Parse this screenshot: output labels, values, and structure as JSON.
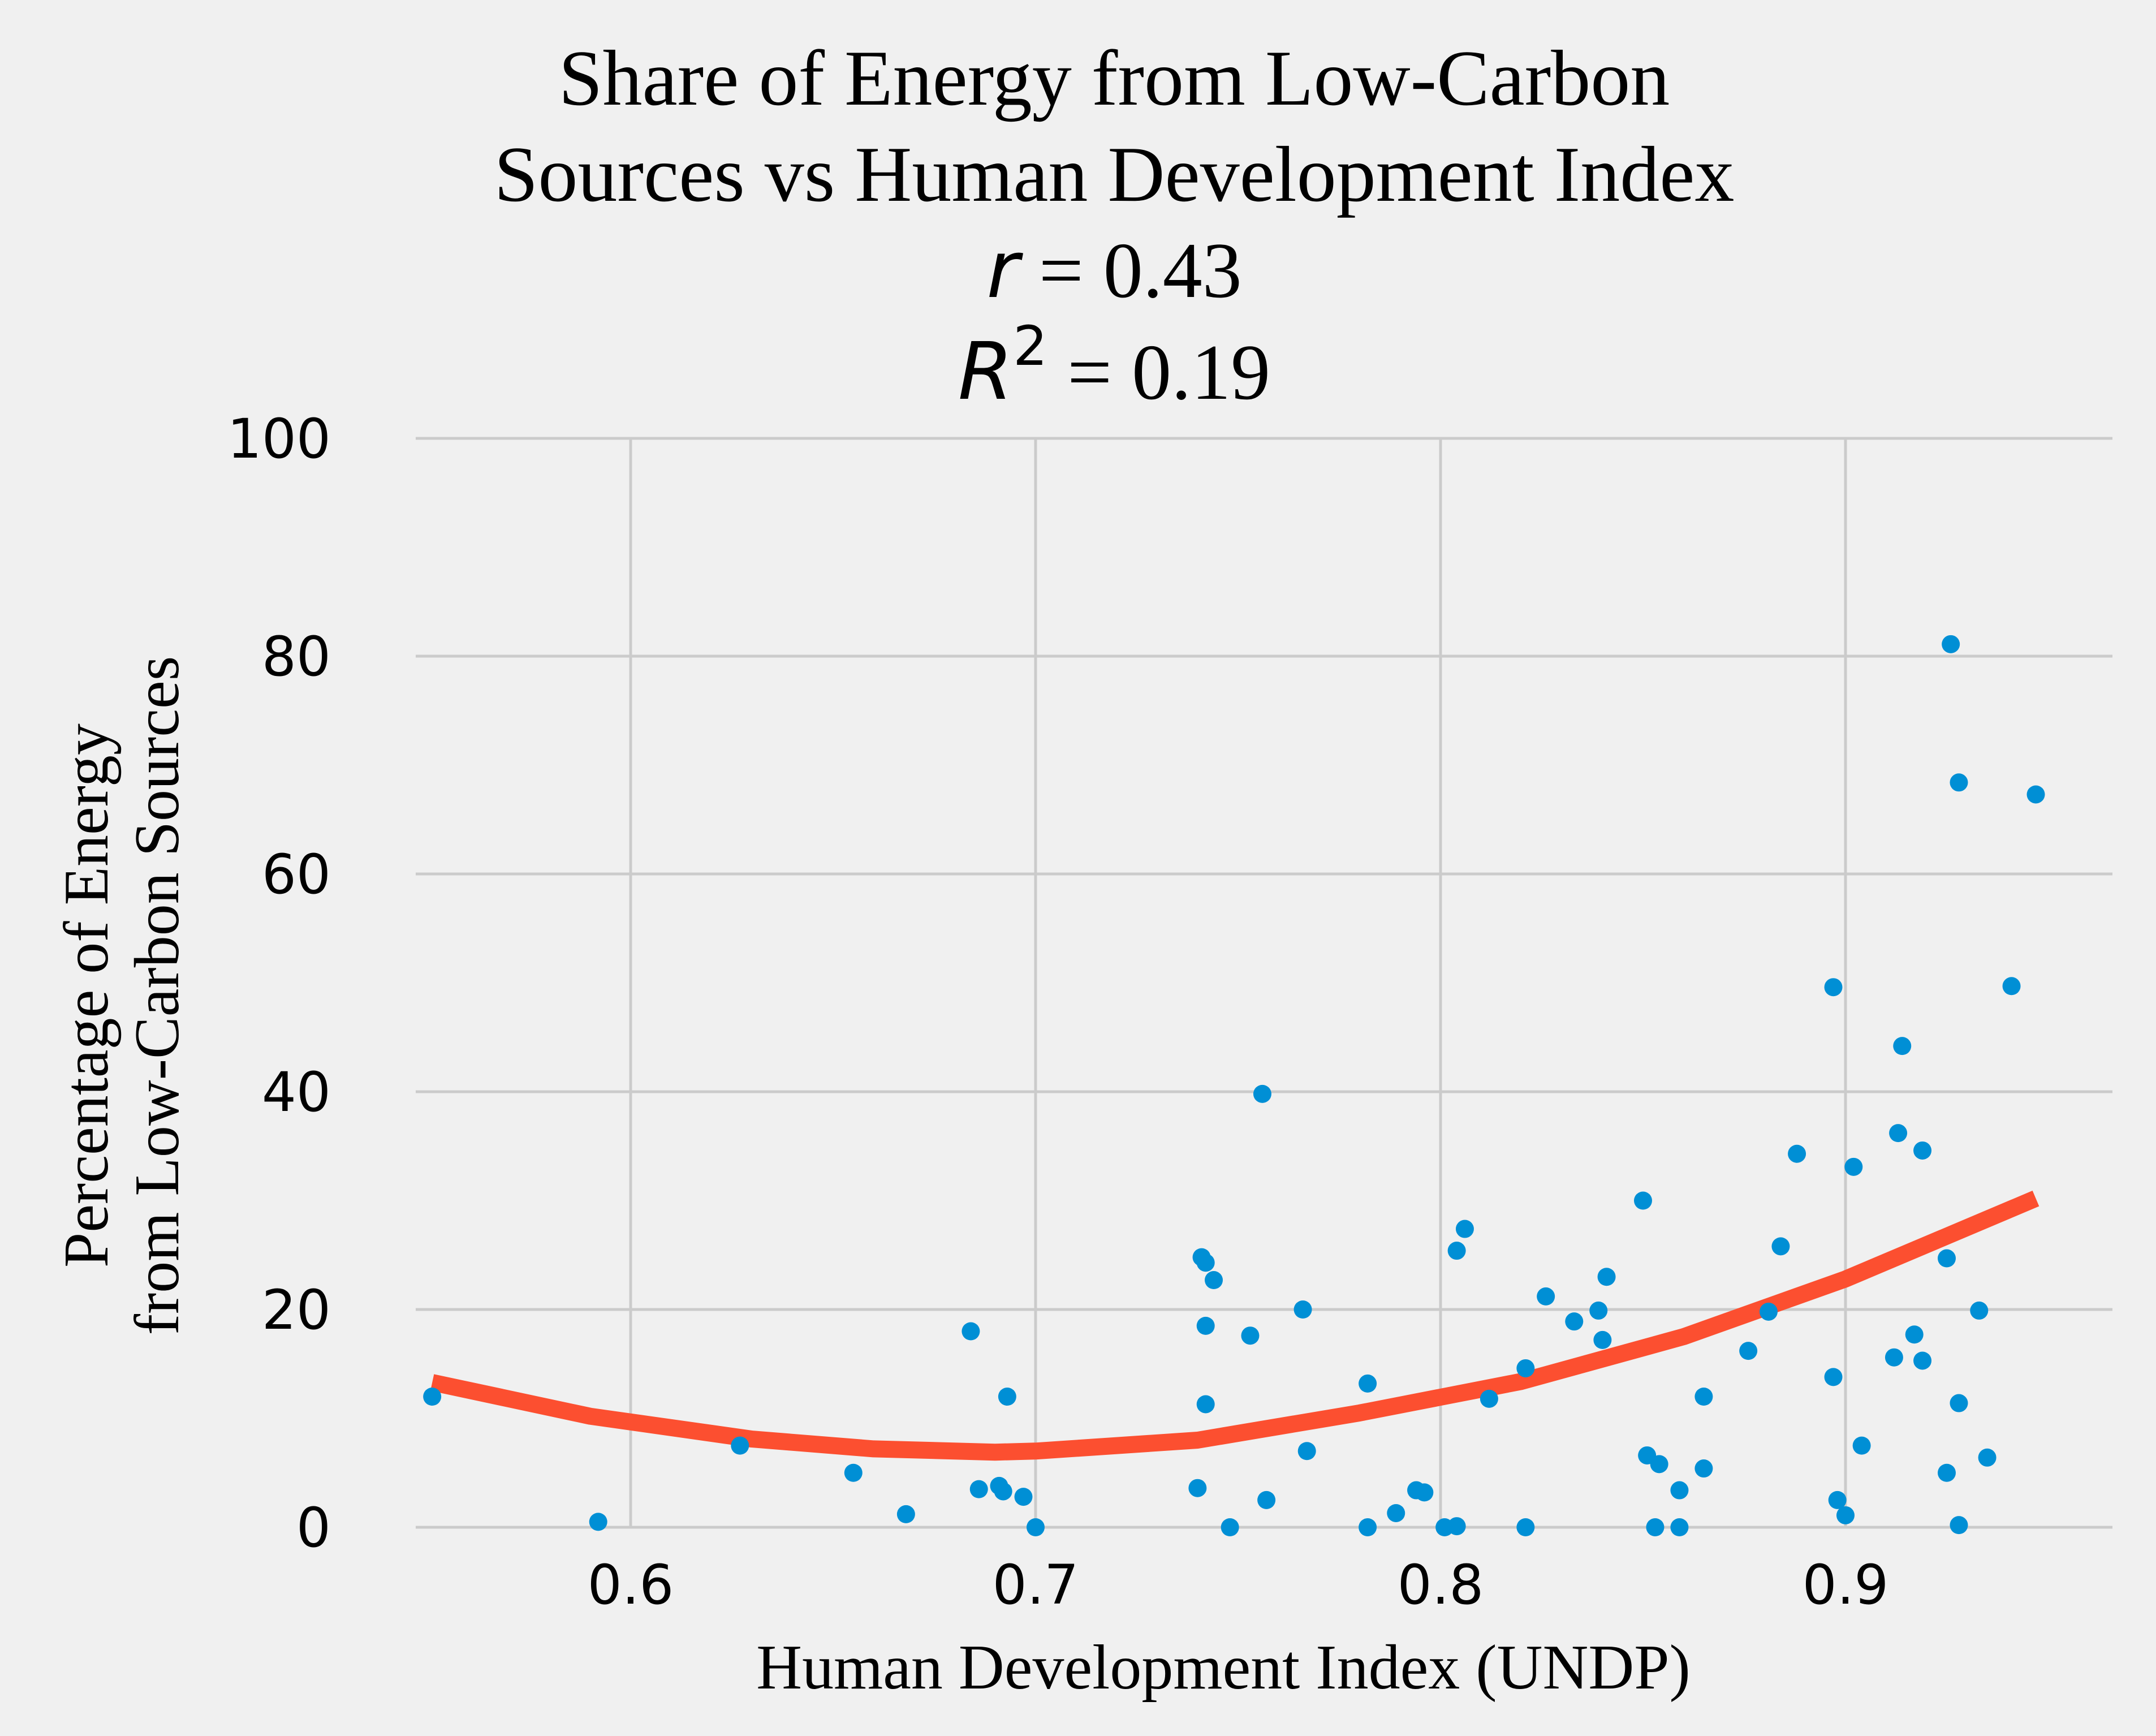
{
  "chart_data": {
    "type": "scatter",
    "title_lines": [
      "Share of Energy from Low-Carbon",
      "Sources vs Human Development Index"
    ],
    "stats": {
      "r_symbol": "r",
      "r_text": " = 0.43",
      "r2_symbol": "R",
      "r2_exponent": "2",
      "r2_text": " = 0.19"
    },
    "xlabel": "Human Development Index (UNDP)",
    "ylabel_lines": [
      "Percentage of Energy",
      "from Low-Carbon Sources"
    ],
    "xlim": [
      0.55,
      0.95
    ],
    "ylim": [
      0,
      100
    ],
    "xticks": [
      0.6,
      0.7,
      0.8,
      0.9
    ],
    "xtick_labels": [
      "0.6",
      "0.7",
      "0.8",
      "0.9"
    ],
    "yticks": [
      0,
      20,
      40,
      60,
      80,
      100
    ],
    "ytick_labels": [
      "0",
      "20",
      "40",
      "60",
      "80",
      "100"
    ],
    "grid": true,
    "colors": {
      "points": "#008fd5",
      "fit": "#fc4f30",
      "background": "#f0f0f0",
      "grid": "#cbcbcb"
    },
    "points": [
      [
        0.551,
        12.0
      ],
      [
        0.592,
        0.5
      ],
      [
        0.627,
        7.5
      ],
      [
        0.655,
        5.0
      ],
      [
        0.668,
        1.2
      ],
      [
        0.684,
        18.0
      ],
      [
        0.686,
        3.5
      ],
      [
        0.691,
        3.8
      ],
      [
        0.692,
        3.3
      ],
      [
        0.693,
        12.0
      ],
      [
        0.697,
        2.8
      ],
      [
        0.7,
        0.0
      ],
      [
        0.74,
        3.6
      ],
      [
        0.741,
        24.8
      ],
      [
        0.742,
        24.3
      ],
      [
        0.742,
        18.5
      ],
      [
        0.742,
        11.3
      ],
      [
        0.744,
        22.7
      ],
      [
        0.748,
        0.0
      ],
      [
        0.753,
        17.6
      ],
      [
        0.756,
        39.8
      ],
      [
        0.757,
        2.5
      ],
      [
        0.766,
        20.0
      ],
      [
        0.767,
        7.0
      ],
      [
        0.782,
        0.0
      ],
      [
        0.782,
        13.2
      ],
      [
        0.789,
        1.3
      ],
      [
        0.794,
        3.4
      ],
      [
        0.796,
        3.2
      ],
      [
        0.801,
        0.0
      ],
      [
        0.804,
        0.1
      ],
      [
        0.804,
        25.4
      ],
      [
        0.806,
        27.4
      ],
      [
        0.812,
        11.8
      ],
      [
        0.821,
        0.0
      ],
      [
        0.821,
        14.6
      ],
      [
        0.826,
        21.2
      ],
      [
        0.833,
        18.9
      ],
      [
        0.839,
        19.9
      ],
      [
        0.84,
        17.2
      ],
      [
        0.841,
        23.0
      ],
      [
        0.85,
        30.0
      ],
      [
        0.851,
        6.6
      ],
      [
        0.853,
        0.0
      ],
      [
        0.854,
        5.8
      ],
      [
        0.859,
        3.4
      ],
      [
        0.859,
        0.0
      ],
      [
        0.865,
        12.0
      ],
      [
        0.865,
        5.4
      ],
      [
        0.876,
        16.2
      ],
      [
        0.881,
        19.8
      ],
      [
        0.884,
        25.8
      ],
      [
        0.888,
        34.3
      ],
      [
        0.897,
        49.6
      ],
      [
        0.897,
        13.8
      ],
      [
        0.898,
        2.5
      ],
      [
        0.9,
        1.1
      ],
      [
        0.902,
        33.1
      ],
      [
        0.904,
        7.5
      ],
      [
        0.912,
        15.6
      ],
      [
        0.913,
        36.2
      ],
      [
        0.914,
        44.2
      ],
      [
        0.917,
        17.7
      ],
      [
        0.919,
        34.6
      ],
      [
        0.919,
        15.3
      ],
      [
        0.925,
        24.7
      ],
      [
        0.925,
        5.0
      ],
      [
        0.926,
        81.1
      ],
      [
        0.928,
        68.4
      ],
      [
        0.928,
        11.4
      ],
      [
        0.928,
        0.2
      ],
      [
        0.933,
        19.9
      ],
      [
        0.935,
        6.4
      ],
      [
        0.941,
        49.7
      ],
      [
        0.947,
        67.3
      ]
    ],
    "fit": {
      "type": "polynomial",
      "x": [
        0.551,
        0.59,
        0.63,
        0.66,
        0.69,
        0.7,
        0.74,
        0.78,
        0.82,
        0.86,
        0.9,
        0.947
      ],
      "y": [
        13.3,
        10.2,
        8.1,
        7.2,
        6.9,
        7.0,
        8.0,
        10.5,
        13.4,
        17.5,
        22.8,
        30.2
      ]
    }
  }
}
